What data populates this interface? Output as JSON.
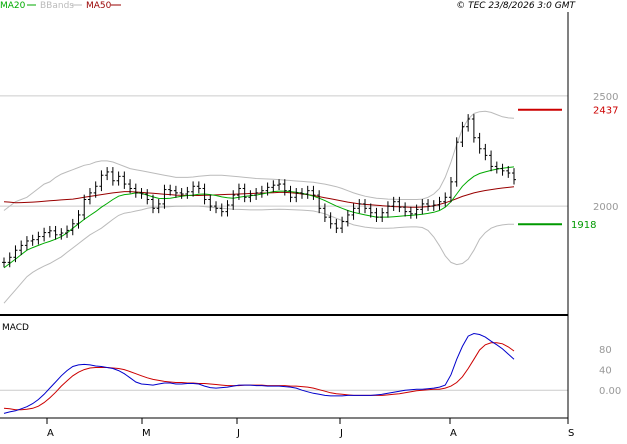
{
  "header": {
    "legend": [
      {
        "label": "MA20",
        "color": "#00aa00"
      },
      {
        "label": "BBands",
        "color": "#bbbbbb"
      },
      {
        "label": "MA50",
        "color": "#990000"
      }
    ],
    "copyright": "© TEC 23/8/2026 3:0 GMT"
  },
  "chart_data": [
    {
      "type": "line",
      "title": "",
      "price_panel": {
        "ylim": [
          1520,
          2880
        ],
        "y_ticks": [
          {
            "value": 2000,
            "label": "2000"
          },
          {
            "value": 2500,
            "label": "2500"
          }
        ],
        "x_month_labels": [
          "A",
          "M",
          "J",
          "J",
          "A",
          "S"
        ],
        "levels": [
          {
            "value": 2437,
            "label": "2437",
            "color": "#cc0000"
          },
          {
            "value": 1918,
            "label": "1918",
            "color": "#009900"
          }
        ],
        "series": [
          {
            "name": "MA20",
            "color": "#00aa00"
          },
          {
            "name": "BBands",
            "color": "#bbbbbb"
          },
          {
            "name": "MA50",
            "color": "#990000"
          }
        ],
        "close": [
          1745,
          1768,
          1800,
          1822,
          1842,
          1848,
          1862,
          1880,
          1888,
          1870,
          1878,
          1890,
          1920,
          1960,
          2030,
          2060,
          2090,
          2140,
          2155,
          2115,
          2135,
          2100,
          2080,
          2060,
          2055,
          2030,
          1990,
          2010,
          2075,
          2070,
          2060,
          2055,
          2065,
          2090,
          2080,
          2030,
          2000,
          1990,
          1975,
          2005,
          2050,
          2080,
          2040,
          2050,
          2060,
          2070,
          2085,
          2095,
          2100,
          2070,
          2040,
          2060,
          2055,
          2070,
          2050,
          1990,
          1950,
          1920,
          1900,
          1930,
          1960,
          1990,
          2010,
          1990,
          1970,
          1950,
          1970,
          2000,
          2020,
          1995,
          1975,
          1965,
          1985,
          2010,
          2000,
          2005,
          2020,
          2040,
          2110,
          2290,
          2360,
          2395,
          2310,
          2260,
          2230,
          2180,
          2170,
          2160,
          2150,
          2120
        ],
        "ma20": [
          1720,
          1740,
          1760,
          1780,
          1800,
          1812,
          1822,
          1832,
          1840,
          1850,
          1862,
          1878,
          1900,
          1920,
          1940,
          1958,
          1975,
          1995,
          2012,
          2030,
          2045,
          2052,
          2055,
          2060,
          2058,
          2050,
          2042,
          2035,
          2034,
          2036,
          2040,
          2045,
          2048,
          2050,
          2054,
          2055,
          2052,
          2048,
          2042,
          2038,
          2036,
          2040,
          2044,
          2047,
          2050,
          2055,
          2060,
          2066,
          2068,
          2068,
          2066,
          2063,
          2058,
          2052,
          2045,
          2036,
          2025,
          2013,
          2000,
          1990,
          1980,
          1972,
          1966,
          1960,
          1955,
          1950,
          1950,
          1950,
          1952,
          1954,
          1956,
          1958,
          1960,
          1963,
          1967,
          1972,
          1980,
          1995,
          2020,
          2055,
          2090,
          2115,
          2135,
          2148,
          2155,
          2162,
          2168,
          2172,
          2175,
          2178
        ],
        "bb_upper": [
          1980,
          2000,
          2020,
          2030,
          2040,
          2060,
          2080,
          2100,
          2110,
          2130,
          2145,
          2155,
          2165,
          2175,
          2185,
          2190,
          2200,
          2205,
          2205,
          2200,
          2190,
          2180,
          2170,
          2165,
          2160,
          2155,
          2150,
          2145,
          2140,
          2135,
          2130,
          2130,
          2130,
          2132,
          2135,
          2138,
          2140,
          2140,
          2140,
          2138,
          2135,
          2133,
          2130,
          2128,
          2125,
          2124,
          2123,
          2122,
          2120,
          2118,
          2116,
          2114,
          2112,
          2110,
          2108,
          2104,
          2100,
          2094,
          2088,
          2080,
          2070,
          2060,
          2052,
          2045,
          2040,
          2036,
          2034,
          2032,
          2031,
          2030,
          2030,
          2030,
          2030,
          2032,
          2040,
          2055,
          2080,
          2130,
          2200,
          2280,
          2350,
          2395,
          2420,
          2428,
          2430,
          2425,
          2415,
          2405,
          2400,
          2398
        ],
        "bb_lower": [
          1560,
          1590,
          1620,
          1650,
          1680,
          1700,
          1715,
          1728,
          1740,
          1755,
          1770,
          1790,
          1810,
          1830,
          1850,
          1870,
          1885,
          1900,
          1920,
          1940,
          1958,
          1968,
          1972,
          1978,
          1983,
          1990,
          1994,
          1995,
          1996,
          1998,
          1999,
          1999,
          2000,
          2000,
          2000,
          1998,
          1995,
          1993,
          1990,
          1988,
          1986,
          1985,
          1984,
          1983,
          1983,
          1983,
          1984,
          1985,
          1986,
          1985,
          1984,
          1983,
          1982,
          1980,
          1978,
          1972,
          1965,
          1955,
          1945,
          1935,
          1925,
          1915,
          1910,
          1905,
          1902,
          1900,
          1900,
          1900,
          1901,
          1903,
          1905,
          1906,
          1906,
          1903,
          1890,
          1860,
          1820,
          1775,
          1745,
          1735,
          1740,
          1760,
          1800,
          1850,
          1880,
          1900,
          1910,
          1915,
          1918,
          1918
        ],
        "ma50": [
          2020,
          2018,
          2015,
          2016,
          2017,
          2018,
          2020,
          2022,
          2024,
          2026,
          2028,
          2030,
          2032,
          2036,
          2040,
          2044,
          2048,
          2052,
          2056,
          2060,
          2063,
          2066,
          2066,
          2064,
          2062,
          2060,
          2058,
          2056,
          2054,
          2052,
          2050,
          2049,
          2048,
          2048,
          2048,
          2049,
          2050,
          2051,
          2052,
          2053,
          2054,
          2055,
          2056,
          2057,
          2058,
          2059,
          2060,
          2061,
          2062,
          2062,
          2061,
          2058,
          2055,
          2052,
          2048,
          2043,
          2038,
          2033,
          2028,
          2023,
          2018,
          2014,
          2010,
          2008,
          2006,
          2004,
          2002,
          2000,
          1998,
          1997,
          1996,
          1995,
          1995,
          1996,
          1998,
          2002,
          2008,
          2015,
          2024,
          2034,
          2044,
          2052,
          2060,
          2066,
          2071,
          2075,
          2079,
          2082,
          2085,
          2088
        ]
      },
      "macd_panel": {
        "title": "MACD",
        "ylim": [
          -50,
          140
        ],
        "y_ticks": [
          {
            "value": 0,
            "label": "0.00"
          },
          {
            "value": 40,
            "label": "40"
          },
          {
            "value": 80,
            "label": "80"
          }
        ],
        "series": [
          {
            "name": "MACD",
            "color": "#0000cc"
          },
          {
            "name": "Signal",
            "color": "#cc0000"
          }
        ],
        "macd": [
          -45,
          -42,
          -40,
          -36,
          -32,
          -26,
          -18,
          -8,
          4,
          16,
          28,
          38,
          46,
          49,
          50,
          49,
          47,
          46,
          44,
          42,
          38,
          32,
          24,
          16,
          12,
          11,
          10,
          12,
          14,
          14,
          12,
          12,
          13,
          13,
          12,
          8,
          5,
          4,
          5,
          6,
          8,
          10,
          10,
          10,
          9,
          9,
          8,
          8,
          8,
          7,
          6,
          4,
          0,
          -3,
          -6,
          -8,
          -10,
          -11,
          -11,
          -11,
          -10,
          -10,
          -10,
          -10,
          -10,
          -9,
          -8,
          -6,
          -4,
          -2,
          0,
          1,
          2,
          2,
          3,
          4,
          6,
          10,
          30,
          60,
          85,
          105,
          110,
          108,
          103,
          95,
          88,
          80,
          70,
          60
        ],
        "signal": [
          -35,
          -36,
          -38,
          -38,
          -37,
          -35,
          -31,
          -24,
          -15,
          -4,
          8,
          18,
          28,
          35,
          40,
          43,
          44,
          44,
          44,
          43,
          42,
          40,
          36,
          32,
          28,
          24,
          21,
          19,
          17,
          16,
          15,
          15,
          14,
          14,
          13,
          13,
          12,
          11,
          10,
          9,
          9,
          9,
          10,
          10,
          10,
          10,
          9,
          9,
          9,
          9,
          8,
          8,
          7,
          6,
          4,
          1,
          -2,
          -5,
          -7,
          -8,
          -9,
          -10,
          -10,
          -10,
          -10,
          -10,
          -10,
          -9,
          -8,
          -7,
          -5,
          -3,
          -1,
          0,
          1,
          2,
          2,
          4,
          8,
          15,
          26,
          42,
          60,
          78,
          88,
          92,
          92,
          90,
          84,
          76
        ]
      }
    }
  ]
}
